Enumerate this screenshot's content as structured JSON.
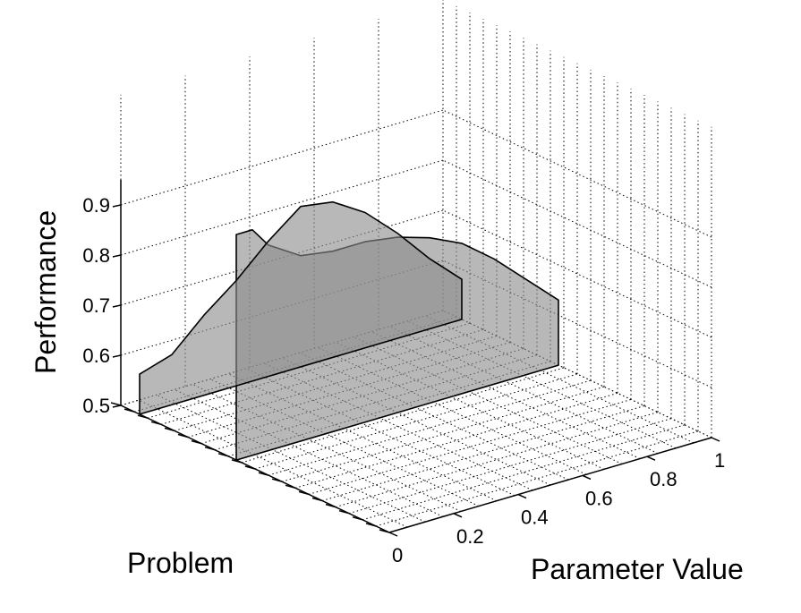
{
  "chart_data": {
    "type": "area",
    "title": "",
    "xlabel": "Parameter Value",
    "ylabel": "Performance",
    "zlabel": "Problem",
    "xlim": [
      0,
      1
    ],
    "zlim": [
      0.5,
      0.95
    ],
    "x_ticks": [
      "0",
      "0.2",
      "0.4",
      "0.6",
      "0.8",
      "1"
    ],
    "z_ticks": [
      "0.5",
      "0.6",
      "0.7",
      "0.8",
      "0.9"
    ],
    "grid": true,
    "fill_color": "#8c8c8c",
    "series": [
      {
        "x": [
          0,
          0.1,
          0.2,
          0.3,
          0.4,
          0.5,
          0.6,
          0.7,
          0.8,
          0.9,
          1.0
        ],
        "values": [
          0.58,
          0.6,
          0.66,
          0.71,
          0.77,
          0.82,
          0.81,
          0.77,
          0.71,
          0.64,
          0.58
        ]
      },
      {
        "x": [
          0,
          0.05,
          0.1,
          0.2,
          0.3,
          0.4,
          0.5,
          0.6,
          0.7,
          0.8,
          0.9,
          1.0
        ],
        "values": [
          0.95,
          0.95,
          0.91,
          0.87,
          0.86,
          0.86,
          0.85,
          0.83,
          0.8,
          0.75,
          0.69,
          0.63
        ]
      }
    ]
  }
}
